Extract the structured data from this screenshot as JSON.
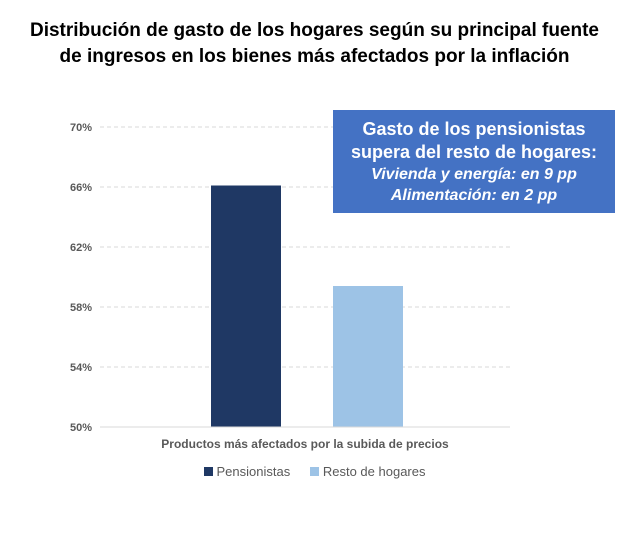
{
  "chart_data": {
    "type": "bar",
    "title": "Distribución de gasto de los hogares según su principal fuente de ingresos en los bienes más afectados por la inflación",
    "title_lines": [
      "Distribución de gasto de los hogares según su principal fuente",
      "de ingresos en los bienes más afectados por la inflación"
    ],
    "xlabel": "Productos más afectados por la subida de precios",
    "ylabel": "",
    "ylim": [
      50,
      70
    ],
    "yticks": [
      50,
      54,
      58,
      62,
      66,
      70
    ],
    "ytick_labels": [
      "50%",
      "54%",
      "58%",
      "62%",
      "66%",
      "70%"
    ],
    "grid": true,
    "categories": [
      "Productos más afectados por la subida de precios"
    ],
    "series": [
      {
        "name": "Pensionistas",
        "values": [
          66.1
        ],
        "color": "#1f3864"
      },
      {
        "name": "Resto de hogares",
        "values": [
          59.4
        ],
        "color": "#9dc3e6"
      }
    ],
    "legend": "bottom",
    "annotation": {
      "heading_lines": [
        "Gasto de los pensionistas",
        "supera del resto de hogares:"
      ],
      "lines": [
        "Vivienda y energía: en 9 pp",
        "Alimentación: en 2 pp"
      ],
      "color": "#4472c4"
    }
  }
}
